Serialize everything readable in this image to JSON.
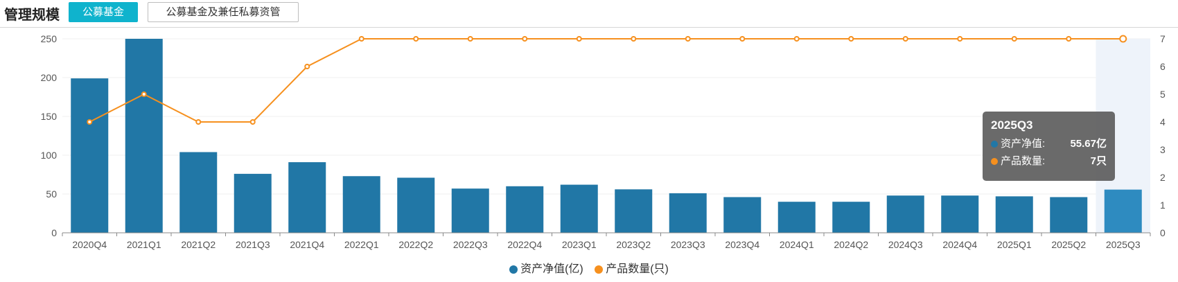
{
  "header": {
    "title": "管理规模",
    "tabs": [
      {
        "label": "公募基金",
        "active": true
      },
      {
        "label": "公募基金及兼任私募资管",
        "active": false
      }
    ]
  },
  "colors": {
    "bar": "#2177a6",
    "bar_highlight": "#2e8bc0",
    "line": "#f6901e",
    "accent": "#0fb3cd"
  },
  "chart_data": {
    "type": "bar",
    "categories": [
      "2020Q4",
      "2021Q1",
      "2021Q2",
      "2021Q3",
      "2021Q4",
      "2022Q1",
      "2022Q2",
      "2022Q3",
      "2022Q4",
      "2023Q1",
      "2023Q2",
      "2023Q3",
      "2023Q4",
      "2024Q1",
      "2024Q2",
      "2024Q3",
      "2024Q4",
      "2025Q1",
      "2025Q2",
      "2025Q3"
    ],
    "series": [
      {
        "name": "资产净值(亿)",
        "type": "bar",
        "axis": "left",
        "values": [
          199,
          250,
          104,
          76,
          91,
          73,
          71,
          57,
          60,
          62,
          56,
          51,
          46,
          40,
          40,
          48,
          48,
          47,
          46,
          55.67
        ]
      },
      {
        "name": "产品数量(只)",
        "type": "line",
        "axis": "right",
        "values": [
          4,
          5,
          4,
          4,
          6,
          7,
          7,
          7,
          7,
          7,
          7,
          7,
          7,
          7,
          7,
          7,
          7,
          7,
          7,
          7
        ]
      }
    ],
    "y_left": {
      "min": 0,
      "max": 250,
      "ticks": [
        0,
        50,
        100,
        150,
        200,
        250
      ]
    },
    "y_right": {
      "min": 0,
      "max": 7,
      "ticks": [
        0,
        1,
        2,
        3,
        4,
        5,
        6,
        7
      ]
    },
    "grid": true,
    "legend": "bottom-center",
    "highlight_index": 19
  },
  "tooltip": {
    "title": "2025Q3",
    "rows": [
      {
        "label": "资产净值:",
        "value": "55.67亿"
      },
      {
        "label": "产品数量:",
        "value": "7只"
      }
    ]
  },
  "legend": {
    "items": [
      {
        "label": "资产净值(亿)"
      },
      {
        "label": "产品数量(只)"
      }
    ]
  }
}
